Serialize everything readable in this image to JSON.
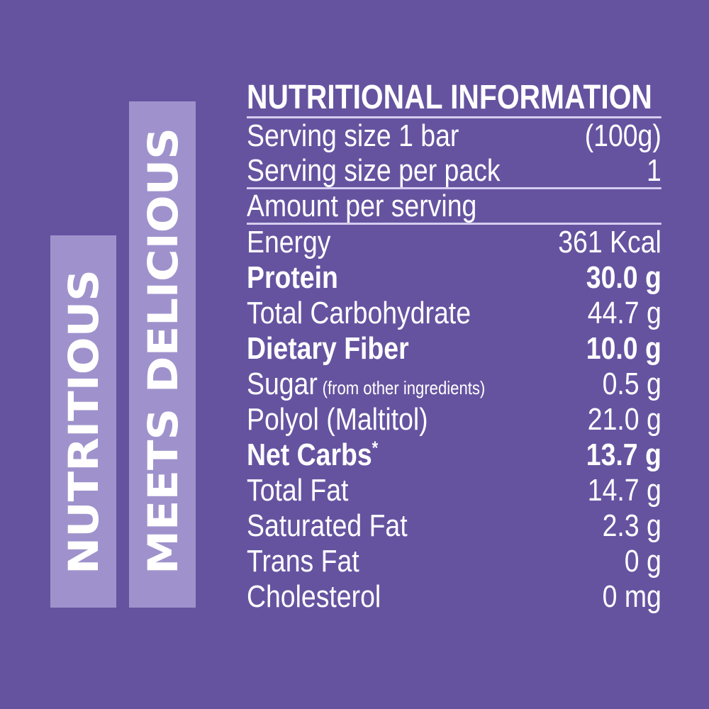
{
  "colors": {
    "background": "#6553a0",
    "tag_background": "#9f92cc",
    "text": "#ffffff",
    "rule": "#d6cdf0"
  },
  "tags": [
    "NUTRITIOUS",
    "MEETS DELICIOUS"
  ],
  "label": {
    "title": "NUTRITIONAL INFORMATION",
    "rows": [
      {
        "name": "Serving size 1 bar",
        "value": "(100g)"
      },
      {
        "name": "Serving size per pack",
        "value": "1"
      },
      {
        "name": "Amount per serving",
        "value": ""
      },
      {
        "name": "Energy",
        "value": "361 Kcal"
      },
      {
        "name": "Protein",
        "value": "30.0 g",
        "bold": true
      },
      {
        "name": "Total Carbohydrate",
        "value": "44.7 g"
      },
      {
        "name": "Dietary Fiber",
        "value": "10.0 g",
        "bold": true
      },
      {
        "name": "Sugar",
        "note": "(from other ingredients)",
        "value": "0.5 g"
      },
      {
        "name": "Polyol (Maltitol)",
        "value": "21.0 g"
      },
      {
        "name": "Net Carbs",
        "sup": "*",
        "value": "13.7 g",
        "bold": true
      },
      {
        "name": "Total Fat",
        "value": "14.7 g"
      },
      {
        "name": "Saturated Fat",
        "value": "2.3 g"
      },
      {
        "name": "Trans Fat",
        "value": "0 g"
      },
      {
        "name": "Cholesterol",
        "value": "0 mg"
      }
    ]
  }
}
